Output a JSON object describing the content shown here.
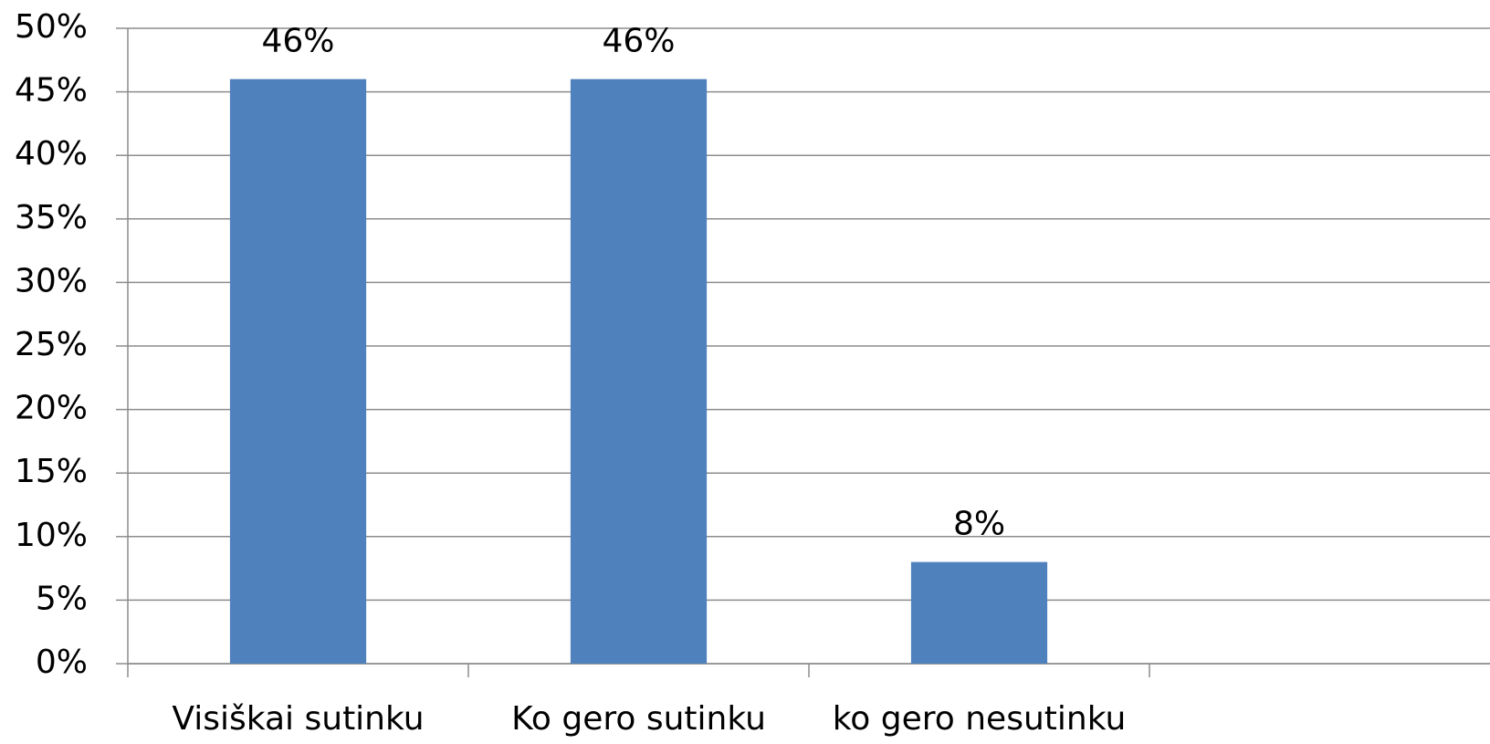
{
  "chart_data": {
    "type": "bar",
    "categories": [
      "Visiškai sutinku",
      "Ko gero sutinku",
      "ko gero nesutinku",
      null
    ],
    "values": [
      46,
      46,
      8,
      null
    ],
    "value_labels": [
      "46%",
      "46%",
      "8%",
      null
    ],
    "color": "#4f81bd",
    "ylim": [
      0,
      50
    ],
    "yticks": [
      {
        "value": 0,
        "label": "0%"
      },
      {
        "value": 5,
        "label": "5%"
      },
      {
        "value": 10,
        "label": "10%"
      },
      {
        "value": 15,
        "label": "15%"
      },
      {
        "value": 20,
        "label": "20%"
      },
      {
        "value": 25,
        "label": "25%"
      },
      {
        "value": 30,
        "label": "30%"
      },
      {
        "value": 35,
        "label": "35%"
      },
      {
        "value": 40,
        "label": "40%"
      },
      {
        "value": 45,
        "label": "45%"
      },
      {
        "value": 50,
        "label": "50%"
      }
    ],
    "grid": true
  }
}
